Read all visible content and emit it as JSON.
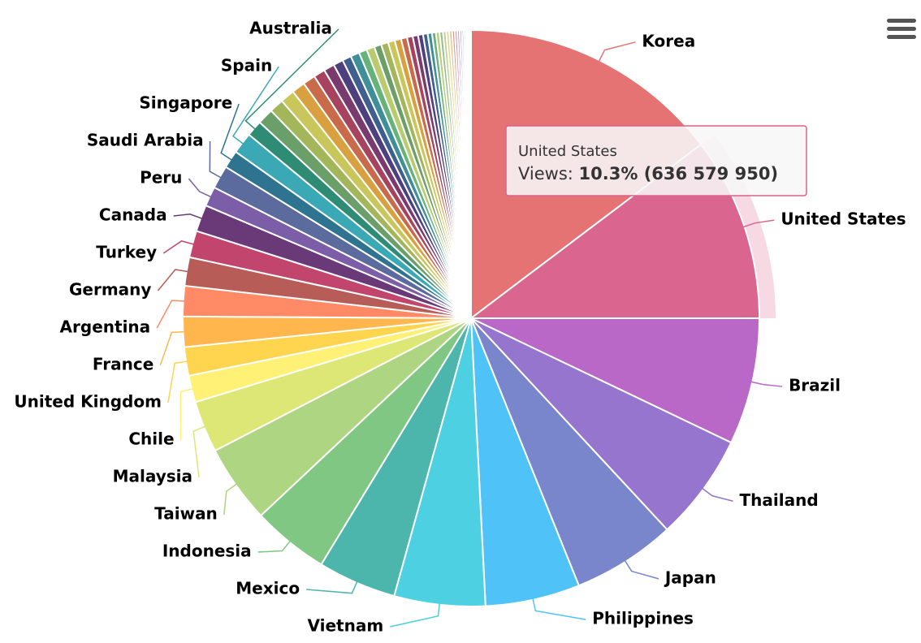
{
  "chart_data": {
    "type": "pie",
    "categories": [
      "Korea",
      "United States",
      "Brazil",
      "Thailand",
      "Japan",
      "Philippines",
      "Vietnam",
      "Mexico",
      "Indonesia",
      "Taiwan",
      "Malaysia",
      "Chile",
      "United Kingdom",
      "France",
      "Argentina",
      "Germany",
      "Turkey",
      "Canada",
      "Peru",
      "Saudi Arabia",
      "Singapore",
      "Spain",
      "Australia",
      null,
      null,
      null,
      null,
      null,
      null,
      null,
      null,
      null,
      null,
      null,
      null,
      null,
      null,
      null,
      null,
      null,
      null,
      null,
      null,
      null,
      null,
      null,
      null,
      null,
      null,
      null,
      null,
      null,
      null,
      null,
      null,
      null,
      null,
      null,
      null,
      null,
      null
    ],
    "values": [
      14.7,
      10.3,
      7.1,
      6.0,
      5.8,
      5.3,
      5.1,
      4.4,
      4.3,
      4.4,
      2.9,
      1.5,
      1.6,
      1.7,
      1.7,
      1.6,
      1.5,
      1.5,
      1.1,
      1.3,
      1.0,
      1.2,
      0.9,
      0.9,
      0.8,
      0.8,
      0.75,
      0.7,
      0.65,
      0.6,
      0.55,
      0.5,
      0.5,
      0.45,
      0.45,
      0.4,
      0.4,
      0.38,
      0.36,
      0.34,
      0.32,
      0.3,
      0.28,
      0.26,
      0.24,
      0.22,
      0.2,
      0.19,
      0.18,
      0.17,
      0.16,
      0.15,
      0.14,
      0.13,
      0.12,
      0.11,
      0.1,
      0.09,
      0.08,
      0.07,
      0.06
    ],
    "colors": [
      "#e57373",
      "#da6690",
      "#ba68c8",
      "#9575cd",
      "#7986cb",
      "#4fc3f7",
      "#4dd0e1",
      "#4db6ac",
      "#81c784",
      "#aed581",
      "#dce775",
      "#fff176",
      "#ffd54f",
      "#ffb74d",
      "#ff8a65",
      "#b85c57",
      "#c2456e",
      "#6a3a78",
      "#7b5ea7",
      "#5c6b9e",
      "#2e7490",
      "#3aa8b5",
      "#2e8b74",
      "#6a9f6a",
      "#a3b65a",
      "#c9c65c",
      "#d9a040",
      "#c96a4a",
      "#a8435f",
      "#7a3a6e",
      "#4e3f7f",
      "#3e5f8f",
      "#3f8f9a",
      "#66b37a",
      "#b8cc6e",
      "#6a9f6a",
      "#a3b65a",
      "#c9c65c",
      "#d9a040",
      "#c96a4a",
      "#a8435f",
      "#7a3a6e",
      "#4e3f7f",
      "#3e5f8f",
      "#3f8f9a",
      "#66b37a",
      "#b8cc6e",
      "#8fbf8f",
      "#c3cf8a",
      "#ddd98f",
      "#e8c080",
      "#dc9a88",
      "#cf8aa0",
      "#b08ab8",
      "#9a92c4",
      "#92aad0",
      "#92ccd4",
      "#aad8b4",
      "#dde8b4",
      "#eeeed0",
      "#f4f4e8"
    ],
    "tooltip": {
      "header": "United States",
      "label": "Views:",
      "value": "10.3% (636 579 950)"
    }
  }
}
